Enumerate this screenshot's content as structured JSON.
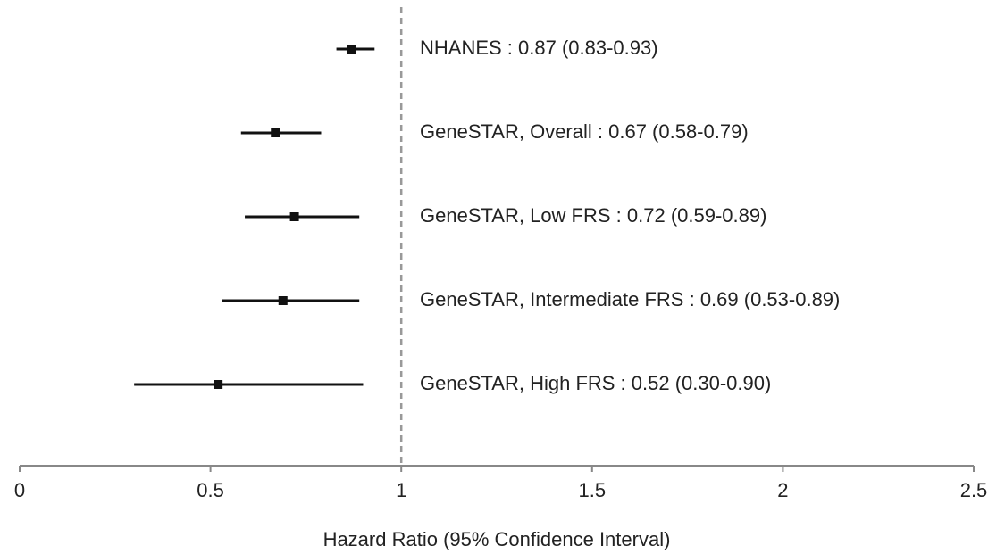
{
  "chart_data": {
    "type": "forest",
    "categories": [
      "NHANES : 0.87 (0.83-0.93)",
      "GeneSTAR, Overall : 0.67 (0.58-0.79)",
      "GeneSTAR, Low FRS : 0.72 (0.59-0.89)",
      "GeneSTAR, Intermediate FRS : 0.69 (0.53-0.89)",
      "GeneSTAR, High FRS : 0.52 (0.30-0.90)"
    ],
    "values": [
      0.87,
      0.67,
      0.72,
      0.69,
      0.52
    ],
    "lower": [
      0.83,
      0.58,
      0.59,
      0.53,
      0.3
    ],
    "upper": [
      0.93,
      0.79,
      0.89,
      0.89,
      0.9
    ],
    "color": "#111111",
    "reference_line": 1,
    "xlim": [
      0,
      2.5
    ],
    "xticks": [
      0,
      0.5,
      1,
      1.5,
      2,
      2.5
    ],
    "xlabel": "Hazard Ratio (95% Confidence Interval)"
  }
}
